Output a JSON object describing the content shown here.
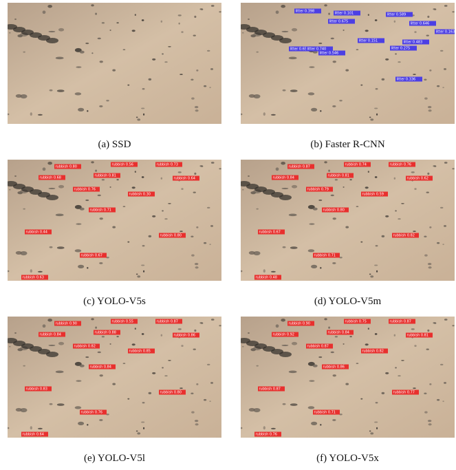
{
  "panels": [
    {
      "caption": "(a) SSD"
    },
    {
      "caption": "(b) Faster R-CNN",
      "detections": [
        "litter 0.398",
        "litter 0.101",
        "litter 0.675",
        "litter 0.589",
        "litter 0.646",
        "litter 0.163",
        "litter 0.151",
        "litter 0.483",
        "litter 0.275",
        "litter 0.658",
        "litter 0.740",
        "litter 0.546",
        "litter 0.336"
      ]
    },
    {
      "caption": "(c) YOLO-V5s",
      "detections": [
        "rubbish 0.80",
        "rubbish 0.56",
        "rubbish 0.73",
        "rubbish 0.68",
        "rubbish 0.81",
        "rubbish 0.64",
        "rubbish 0.76",
        "rubbish 0.30",
        "rubbish 0.71",
        "rubbish 0.44",
        "rubbish 0.80",
        "rubbish 0.67",
        "rubbish 0.63"
      ]
    },
    {
      "caption": "(d) YOLO-V5m",
      "detections": [
        "rubbish 0.87",
        "rubbish 0.74",
        "rubbish 0.76",
        "rubbish 0.84",
        "rubbish 0.81",
        "rubbish 0.62",
        "rubbish 0.79",
        "rubbish 0.59",
        "rubbish 0.80",
        "rubbish 0.67",
        "rubbish 0.82",
        "rubbish 0.71",
        "rubbish 0.48"
      ]
    },
    {
      "caption": "(e) YOLO-V5l",
      "detections": [
        "rubbish 0.90",
        "rubbish 0.55",
        "rubbish 0.87",
        "rubbish 0.84",
        "rubbish 0.88",
        "rubbish 0.86",
        "rubbish 0.82",
        "rubbish 0.85",
        "rubbish 0.84",
        "rubbish 0.83",
        "rubbish 0.80",
        "rubbish 0.76",
        "rubbish 0.64"
      ]
    },
    {
      "caption": "(f) YOLO-V5x",
      "detections": [
        "rubbish 0.90",
        "rubbish 0.75",
        "rubbish 0.87",
        "rubbish 0.92",
        "rubbish 0.84",
        "rubbish 0.81",
        "rubbish 0.87",
        "rubbish 0.82",
        "rubbish 0.86",
        "rubbish 0.87",
        "rubbish 0.77",
        "rubbish 0.71",
        "rubbish 0.76"
      ]
    }
  ]
}
